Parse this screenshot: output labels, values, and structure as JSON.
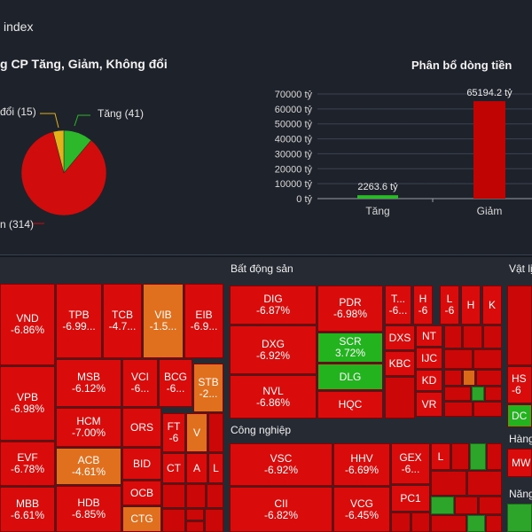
{
  "header": {
    "index_title": "index",
    "pie_title": "g CP Tăng, Giảm, Không đổi",
    "bar_title": "Phân bổ dòng tiền"
  },
  "pie": {
    "labels": {
      "unchanged": "đổi (15)",
      "up": "Tăng (41)",
      "down": "n (314)"
    },
    "values": {
      "up": 41,
      "unchanged": 15,
      "down": 314
    },
    "colors": {
      "up": "#2db82b",
      "unchanged": "#e3b21a",
      "down": "#d00c0c"
    }
  },
  "chart_data": {
    "type": "bar",
    "title": "Phân bổ dòng tiền",
    "categories": [
      "Tăng",
      "Giảm"
    ],
    "values": [
      2263.6,
      65194.2
    ],
    "value_labels": [
      "2263.6 tỷ",
      "65194.2 tỷ"
    ],
    "ylim": [
      0,
      70000
    ],
    "yticks": [
      "0 tỷ",
      "10000 tỷ",
      "20000 tỷ",
      "30000 tỷ",
      "40000 tỷ",
      "50000 tỷ",
      "60000 tỷ",
      "70000 tỷ"
    ],
    "grid": true,
    "colors": [
      "#2db82b",
      "#c00404"
    ]
  },
  "heatmap": {
    "sectors": {
      "bds": "Bất động sản",
      "cn": "Công nghiệp",
      "vl": "Vật lị",
      "hang": "Hàng",
      "nang": "Năng"
    },
    "tiles": {
      "vnd": {
        "sym": "VND",
        "chg": "-6.86%"
      },
      "vpb": {
        "sym": "VPB",
        "chg": "-6.98%"
      },
      "evf": {
        "sym": "EVF",
        "chg": "-6.78%"
      },
      "mbb": {
        "sym": "MBB",
        "chg": "-6.61%"
      },
      "tpb": {
        "sym": "TPB",
        "chg": "-6.99..."
      },
      "tcb": {
        "sym": "TCB",
        "chg": "-4.7..."
      },
      "vib": {
        "sym": "VIB",
        "chg": "-1.5..."
      },
      "eib": {
        "sym": "EIB",
        "chg": "-6.9..."
      },
      "msb": {
        "sym": "MSB",
        "chg": "-6.12%"
      },
      "vci": {
        "sym": "VCI",
        "chg": "-6..."
      },
      "bcg": {
        "sym": "BCG",
        "chg": "-6..."
      },
      "stb": {
        "sym": "STB",
        "chg": "-2..."
      },
      "hcm": {
        "sym": "HCM",
        "chg": "-7.00%"
      },
      "ors": {
        "sym": "ORS",
        "chg": ""
      },
      "ft": {
        "sym": "FT",
        "chg": "-6"
      },
      "v": {
        "sym": "V",
        "chg": ""
      },
      "acb": {
        "sym": "ACB",
        "chg": "-4.61%"
      },
      "bid": {
        "sym": "BID",
        "chg": ""
      },
      "ct": {
        "sym": "CT",
        "chg": ""
      },
      "a": {
        "sym": "A",
        "chg": ""
      },
      "l": {
        "sym": "L",
        "chg": ""
      },
      "hdb": {
        "sym": "HDB",
        "chg": "-6.85%"
      },
      "ocb": {
        "sym": "OCB",
        "chg": ""
      },
      "ctg": {
        "sym": "CTG",
        "chg": ""
      },
      "dig": {
        "sym": "DIG",
        "chg": "-6.87%"
      },
      "pdr": {
        "sym": "PDR",
        "chg": "-6.98%"
      },
      "t": {
        "sym": "T...",
        "chg": "-6..."
      },
      "h": {
        "sym": "H",
        "chg": "-6"
      },
      "lb": {
        "sym": "L",
        "chg": "-6"
      },
      "hb": {
        "sym": "H",
        "chg": ""
      },
      "k": {
        "sym": "K",
        "chg": ""
      },
      "dxg": {
        "sym": "DXG",
        "chg": "-6.92%"
      },
      "scr": {
        "sym": "SCR",
        "chg": "3.72%"
      },
      "dxs": {
        "sym": "DXS",
        "chg": ""
      },
      "nt": {
        "sym": "NT",
        "chg": ""
      },
      "kbc": {
        "sym": "KBC",
        "chg": ""
      },
      "ijc": {
        "sym": "IJC",
        "chg": ""
      },
      "dlg": {
        "sym": "DLG",
        "chg": ""
      },
      "kd": {
        "sym": "KD",
        "chg": ""
      },
      "nvl": {
        "sym": "NVL",
        "chg": "-6.86%"
      },
      "hqc": {
        "sym": "HQC",
        "chg": ""
      },
      "vr": {
        "sym": "VR",
        "chg": ""
      },
      "vsc": {
        "sym": "VSC",
        "chg": "-6.92%"
      },
      "hhv": {
        "sym": "HHV",
        "chg": "-6.69%"
      },
      "gex": {
        "sym": "GEX",
        "chg": "-6..."
      },
      "lc": {
        "sym": "L",
        "chg": ""
      },
      "cii": {
        "sym": "CII",
        "chg": "-6.82%"
      },
      "vcg": {
        "sym": "VCG",
        "chg": "-6.45%"
      },
      "pc1": {
        "sym": "PC1",
        "chg": ""
      },
      "hs": {
        "sym": "HS",
        "chg": "-6"
      },
      "dc": {
        "sym": "DC",
        "chg": ""
      },
      "mw": {
        "sym": "MW",
        "chg": ""
      }
    }
  }
}
